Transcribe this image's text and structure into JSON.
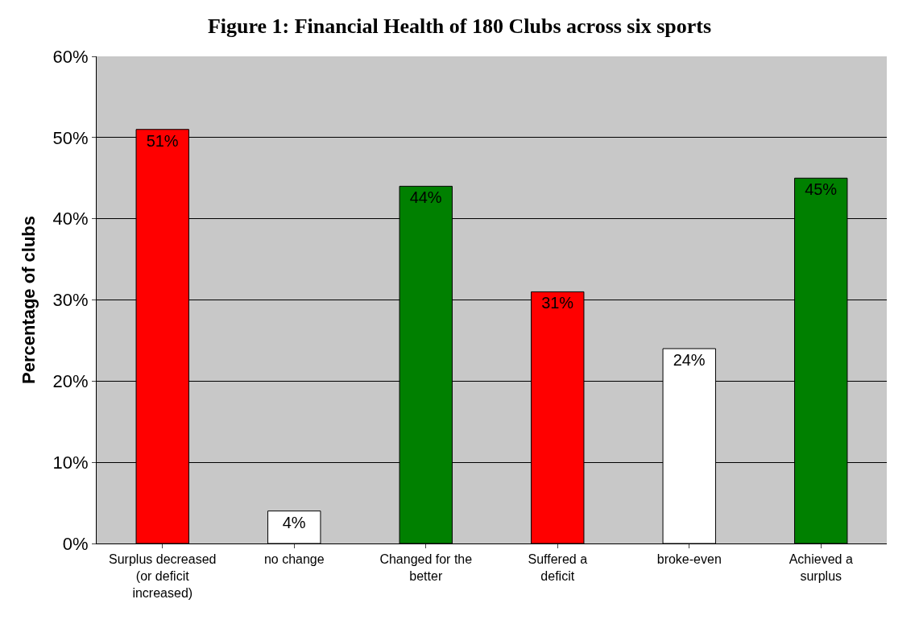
{
  "chart_data": {
    "type": "bar",
    "title": "Figure 1: Financial Health of 180 Clubs across six sports",
    "ylabel": "Percentage of clubs",
    "categories": [
      "Surplus decreased (or deficit increased)",
      "no change",
      "Changed for the better",
      "Suffered a deficit",
      "broke-even",
      "Achieved a surplus"
    ],
    "values": [
      51,
      4,
      44,
      31,
      24,
      45
    ],
    "value_labels": [
      "51%",
      "4%",
      "44%",
      "31%",
      "24%",
      "45%"
    ],
    "colors": [
      "#ff0000",
      "#ffffff",
      "#008000",
      "#ff0000",
      "#ffffff",
      "#008000"
    ],
    "ylim": [
      0,
      60
    ],
    "yticks": [
      {
        "value": 0,
        "label": "0%"
      },
      {
        "value": 10,
        "label": "10%"
      },
      {
        "value": 20,
        "label": "20%"
      },
      {
        "value": 30,
        "label": "30%"
      },
      {
        "value": 40,
        "label": "40%"
      },
      {
        "value": 50,
        "label": "50%"
      },
      {
        "value": 60,
        "label": "60%"
      }
    ],
    "grid": "y"
  }
}
